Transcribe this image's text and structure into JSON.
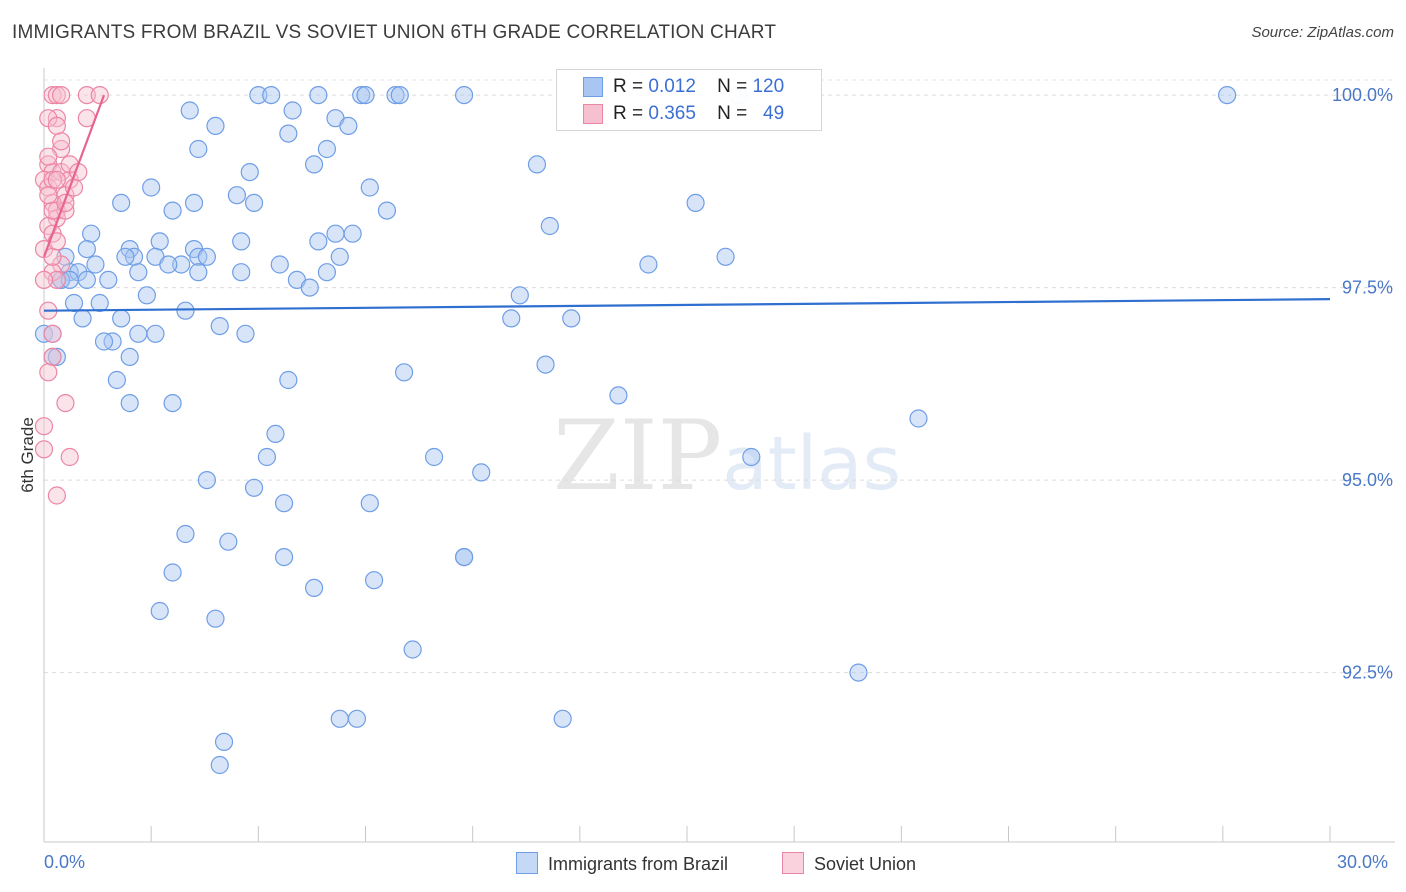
{
  "title": "IMMIGRANTS FROM BRAZIL VS SOVIET UNION 6TH GRADE CORRELATION CHART",
  "source": "Source: ZipAtlas.com",
  "watermark": {
    "zip": "ZIP",
    "atlas": "atlas"
  },
  "stats": [
    {
      "r_label": "R =",
      "r_value": "0.012",
      "n_label": "N =",
      "n_value": "120",
      "color": "#a9c6f2",
      "border": "#6f9ee6"
    },
    {
      "r_label": "R =",
      "r_value": "0.365",
      "n_label": "N =",
      "n_value": "49",
      "color": "#f7c0d0",
      "border": "#ec86a5"
    }
  ],
  "legend": [
    {
      "label": "Immigrants from Brazil",
      "color": "#c5d8f5",
      "border": "#6f9ee6"
    },
    {
      "label": "Soviet Union",
      "color": "#f9d2de",
      "border": "#ec86a5"
    }
  ],
  "chart_data": {
    "type": "scatter",
    "title": "IMMIGRANTS FROM BRAZIL VS SOVIET UNION 6TH GRADE CORRELATION CHART",
    "xlabel": "",
    "ylabel": "6th Grade",
    "xlim": [
      0,
      30
    ],
    "ylim": [
      90.3,
      100.3
    ],
    "x_tick_labels": [
      "0.0%",
      "30.0%"
    ],
    "y_ticks": [
      92.5,
      95.0,
      97.5,
      100.0
    ],
    "y_tick_labels": [
      "92.5%",
      "95.0%",
      "97.5%",
      "100.0%"
    ],
    "grid": true,
    "legend_position": "bottom",
    "series": [
      {
        "name": "Immigrants from Brazil",
        "color": "#6f9ee6",
        "fill": "rgba(169,198,242,0.45)",
        "trend": {
          "x": [
            0,
            30
          ],
          "y": [
            97.2,
            97.35
          ],
          "color": "#2f6fcf"
        },
        "points": [
          [
            5.0,
            100.0
          ],
          [
            5.3,
            100.0
          ],
          [
            6.4,
            100.0
          ],
          [
            7.4,
            100.0
          ],
          [
            7.5,
            100.0
          ],
          [
            8.2,
            100.0
          ],
          [
            8.3,
            100.0
          ],
          [
            9.8,
            100.0
          ],
          [
            16.2,
            100.0
          ],
          [
            27.6,
            100.0
          ],
          [
            3.4,
            99.8
          ],
          [
            5.8,
            99.8
          ],
          [
            6.8,
            99.7
          ],
          [
            4.0,
            99.6
          ],
          [
            5.7,
            99.5
          ],
          [
            7.1,
            99.6
          ],
          [
            3.6,
            99.3
          ],
          [
            6.6,
            99.3
          ],
          [
            6.3,
            99.1
          ],
          [
            4.8,
            99.0
          ],
          [
            11.5,
            99.1
          ],
          [
            7.6,
            98.8
          ],
          [
            2.5,
            98.8
          ],
          [
            4.5,
            98.7
          ],
          [
            4.9,
            98.6
          ],
          [
            3.5,
            98.6
          ],
          [
            1.8,
            98.6
          ],
          [
            3.0,
            98.5
          ],
          [
            8.0,
            98.5
          ],
          [
            15.2,
            98.6
          ],
          [
            11.8,
            98.3
          ],
          [
            3.5,
            98.0
          ],
          [
            1.1,
            98.2
          ],
          [
            2.7,
            98.1
          ],
          [
            4.6,
            98.1
          ],
          [
            6.4,
            98.1
          ],
          [
            2.0,
            98.0
          ],
          [
            3.6,
            97.9
          ],
          [
            6.8,
            98.2
          ],
          [
            7.2,
            98.2
          ],
          [
            1.0,
            98.0
          ],
          [
            0.5,
            97.9
          ],
          [
            2.1,
            97.9
          ],
          [
            2.6,
            97.9
          ],
          [
            3.2,
            97.8
          ],
          [
            3.8,
            97.9
          ],
          [
            5.5,
            97.8
          ],
          [
            6.9,
            97.9
          ],
          [
            1.2,
            97.8
          ],
          [
            14.1,
            97.8
          ],
          [
            15.9,
            97.9
          ],
          [
            0.6,
            97.7
          ],
          [
            0.4,
            97.6
          ],
          [
            0.8,
            97.7
          ],
          [
            1.5,
            97.6
          ],
          [
            2.2,
            97.7
          ],
          [
            3.6,
            97.7
          ],
          [
            4.6,
            97.7
          ],
          [
            6.6,
            97.7
          ],
          [
            5.9,
            97.6
          ],
          [
            0.7,
            97.3
          ],
          [
            1.3,
            97.3
          ],
          [
            2.4,
            97.4
          ],
          [
            6.2,
            97.5
          ],
          [
            11.1,
            97.4
          ],
          [
            3.3,
            97.2
          ],
          [
            0.9,
            97.1
          ],
          [
            1.8,
            97.1
          ],
          [
            4.1,
            97.0
          ],
          [
            10.9,
            97.1
          ],
          [
            12.3,
            97.1
          ],
          [
            0.0,
            96.9
          ],
          [
            2.2,
            96.9
          ],
          [
            1.6,
            96.8
          ],
          [
            2.6,
            96.9
          ],
          [
            4.7,
            96.9
          ],
          [
            1.4,
            96.8
          ],
          [
            2.0,
            96.6
          ],
          [
            0.2,
            96.6
          ],
          [
            5.7,
            96.3
          ],
          [
            8.4,
            96.4
          ],
          [
            11.7,
            96.5
          ],
          [
            1.7,
            96.3
          ],
          [
            2.0,
            96.0
          ],
          [
            3.0,
            96.0
          ],
          [
            13.4,
            96.1
          ],
          [
            20.4,
            95.8
          ],
          [
            5.4,
            95.6
          ],
          [
            5.2,
            95.3
          ],
          [
            9.1,
            95.3
          ],
          [
            16.5,
            95.3
          ],
          [
            10.2,
            95.1
          ],
          [
            3.8,
            95.0
          ],
          [
            4.9,
            94.9
          ],
          [
            5.6,
            94.7
          ],
          [
            7.6,
            94.7
          ],
          [
            3.3,
            94.3
          ],
          [
            4.3,
            94.2
          ],
          [
            5.6,
            94.0
          ],
          [
            9.8,
            94.0
          ],
          [
            9.8,
            94.0
          ],
          [
            3.0,
            93.8
          ],
          [
            7.7,
            93.7
          ],
          [
            6.3,
            93.6
          ],
          [
            2.7,
            93.3
          ],
          [
            4.0,
            93.2
          ],
          [
            8.6,
            92.8
          ],
          [
            19.0,
            92.5
          ],
          [
            7.3,
            91.9
          ],
          [
            12.1,
            91.9
          ],
          [
            4.2,
            91.6
          ],
          [
            4.1,
            91.3
          ],
          [
            6.9,
            91.9
          ],
          [
            0.3,
            96.6
          ],
          [
            0.2,
            96.9
          ],
          [
            0.4,
            97.6
          ],
          [
            0.6,
            97.6
          ],
          [
            2.9,
            97.8
          ],
          [
            1.0,
            97.6
          ],
          [
            1.9,
            97.9
          ]
        ]
      },
      {
        "name": "Soviet Union",
        "color": "#ec86a5",
        "fill": "rgba(247,192,208,0.45)",
        "trend": {
          "x": [
            0,
            1.4
          ],
          "y": [
            97.9,
            100.0
          ],
          "color": "#e8638e"
        },
        "points": [
          [
            0.2,
            100.0
          ],
          [
            0.3,
            100.0
          ],
          [
            0.4,
            100.0
          ],
          [
            1.0,
            100.0
          ],
          [
            1.3,
            100.0
          ],
          [
            0.3,
            99.7
          ],
          [
            0.1,
            99.7
          ],
          [
            0.3,
            99.6
          ],
          [
            1.0,
            99.7
          ],
          [
            0.4,
            99.3
          ],
          [
            0.1,
            99.1
          ],
          [
            0.2,
            99.0
          ],
          [
            0.4,
            99.0
          ],
          [
            0.6,
            98.9
          ],
          [
            0.0,
            98.9
          ],
          [
            0.1,
            98.8
          ],
          [
            0.5,
            98.7
          ],
          [
            0.2,
            98.6
          ],
          [
            0.3,
            98.5
          ],
          [
            0.3,
            98.4
          ],
          [
            0.1,
            98.3
          ],
          [
            0.2,
            98.2
          ],
          [
            0.0,
            98.0
          ],
          [
            0.4,
            97.8
          ],
          [
            0.2,
            97.7
          ],
          [
            0.3,
            97.6
          ],
          [
            0.0,
            97.6
          ],
          [
            0.1,
            97.2
          ],
          [
            0.2,
            96.9
          ],
          [
            0.2,
            96.6
          ],
          [
            0.1,
            96.4
          ],
          [
            0.5,
            96.0
          ],
          [
            0.0,
            95.7
          ],
          [
            0.0,
            95.4
          ],
          [
            0.6,
            95.3
          ],
          [
            0.3,
            94.8
          ],
          [
            0.2,
            98.9
          ],
          [
            0.1,
            99.2
          ],
          [
            0.5,
            98.5
          ],
          [
            0.3,
            98.9
          ],
          [
            0.7,
            98.8
          ],
          [
            0.2,
            98.5
          ],
          [
            0.6,
            99.1
          ],
          [
            0.4,
            99.4
          ],
          [
            0.1,
            98.7
          ],
          [
            0.8,
            99.0
          ],
          [
            0.2,
            97.9
          ],
          [
            0.5,
            98.6
          ],
          [
            0.3,
            98.1
          ]
        ]
      }
    ]
  }
}
